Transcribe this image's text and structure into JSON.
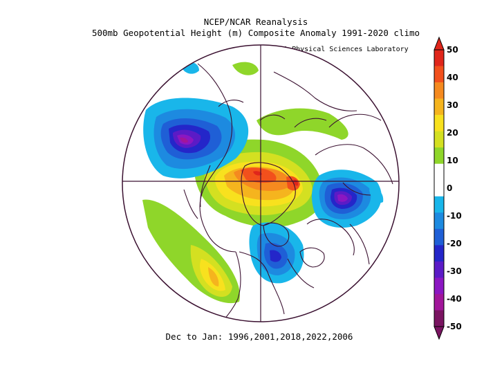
{
  "header": {
    "line1": "NCEP/NCAR Reanalysis",
    "line2": "500mb Geopotential Height (m) Composite Anomaly 1991-2020 climo",
    "credit": "NOAA Physical Sciences Laboratory"
  },
  "footer": {
    "caption": "Dec to Jan: 1996,2001,2018,2022,2006"
  },
  "colorbar": {
    "labels": [
      "50",
      "40",
      "30",
      "20",
      "10",
      "0",
      "-10",
      "-20",
      "-30",
      "-40",
      "-50"
    ],
    "colors": [
      "#e0261b",
      "#f2501c",
      "#f58a1f",
      "#f5b41e",
      "#f8e11e",
      "#d4e021",
      "#8fd62a",
      "#ffffff",
      "#ffffff",
      "#19b6ea",
      "#1d8ae0",
      "#1f5fd6",
      "#2426c9",
      "#5b1bc6",
      "#8b17c2",
      "#a1169a",
      "#7a1461"
    ]
  },
  "map": {
    "projection": "north-polar-stereographic",
    "anomalies": [
      {
        "id": "ridge-arctic",
        "sign": "positive",
        "max_m": 50
      },
      {
        "id": "trough-north-pacific",
        "sign": "negative",
        "min_m": -40
      },
      {
        "id": "trough-central-russia",
        "sign": "negative",
        "min_m": -40
      },
      {
        "id": "trough-hudson-bay",
        "sign": "negative",
        "min_m": -20
      },
      {
        "id": "ridge-western-north-america",
        "sign": "positive",
        "max_m": 25
      }
    ]
  }
}
